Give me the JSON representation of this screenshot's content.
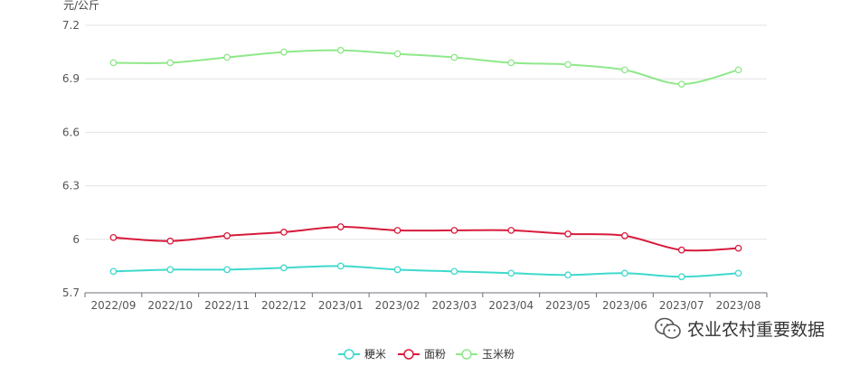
{
  "chart_data": {
    "type": "line",
    "ylabel": "元/公斤",
    "ylim": [
      5.7,
      7.2
    ],
    "yticks": [
      "5.7",
      "6",
      "6.3",
      "6.6",
      "6.9",
      "7.2"
    ],
    "yticks_values": [
      5.7,
      6.0,
      6.3,
      6.6,
      6.9,
      7.2
    ],
    "categories": [
      "2022/09",
      "2022/10",
      "2022/11",
      "2022/12",
      "2023/01",
      "2023/02",
      "2023/03",
      "2023/04",
      "2023/05",
      "2023/06",
      "2023/07",
      "2023/08"
    ],
    "grid": true,
    "legend_position": "bottom-center",
    "series": [
      {
        "name": "粳米",
        "color": "#3fd9cc",
        "values": [
          5.82,
          5.83,
          5.83,
          5.84,
          5.85,
          5.83,
          5.82,
          5.81,
          5.8,
          5.81,
          5.79,
          5.81
        ]
      },
      {
        "name": "面粉",
        "color": "#d81b3c",
        "values": [
          6.01,
          5.99,
          6.02,
          6.04,
          6.07,
          6.05,
          6.05,
          6.05,
          6.03,
          6.02,
          5.94,
          5.95
        ]
      },
      {
        "name": "玉米粉",
        "color": "#8fe88a",
        "values": [
          6.99,
          6.99,
          7.02,
          7.05,
          7.06,
          7.04,
          7.02,
          6.99,
          6.98,
          6.95,
          6.87,
          6.95
        ]
      }
    ]
  },
  "watermark": {
    "text": "农业农村重要数据",
    "icon": "wechat-icon"
  }
}
